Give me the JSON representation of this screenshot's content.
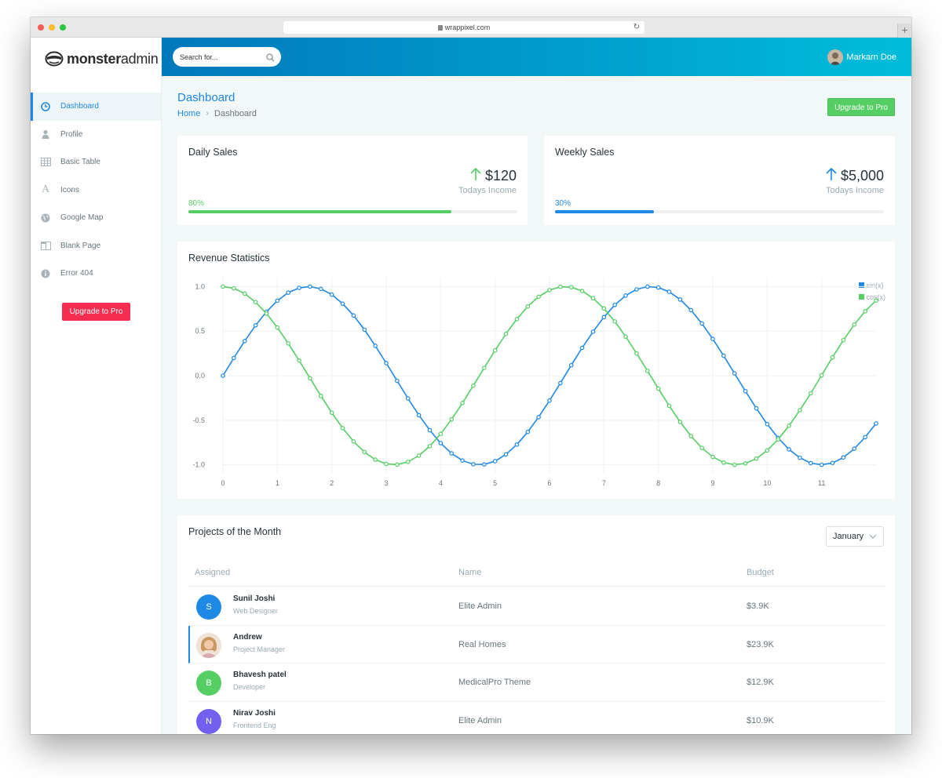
{
  "browser": {
    "url": "wrappixel.com"
  },
  "logo": {
    "bold": "monster",
    "light": "admin"
  },
  "sidebar": {
    "items": [
      {
        "label": "Dashboard",
        "icon": "clock-icon"
      },
      {
        "label": "Profile",
        "icon": "user-icon"
      },
      {
        "label": "Basic Table",
        "icon": "table-icon"
      },
      {
        "label": "Icons",
        "icon": "font-icon"
      },
      {
        "label": "Google Map",
        "icon": "globe-icon"
      },
      {
        "label": "Blank Page",
        "icon": "columns-icon"
      },
      {
        "label": "Error 404",
        "icon": "info-icon"
      }
    ],
    "upgrade_label": "Upgrade to Pro"
  },
  "topbar": {
    "search_placeholder": "Search for...",
    "user_name": "Markarn Doe"
  },
  "page": {
    "title": "Dashboard",
    "breadcrumb": {
      "home": "Home",
      "current": "Dashboard"
    },
    "upgrade_label": "Upgrade to Pro"
  },
  "daily_sales": {
    "title": "Daily Sales",
    "value": "$120",
    "subtitle": "Todays Income",
    "percent_label": "80%",
    "progress": 0.8,
    "color": "#55ce63"
  },
  "weekly_sales": {
    "title": "Weekly Sales",
    "value": "$5,000",
    "subtitle": "Todays Income",
    "percent_label": "30%",
    "progress": 0.3,
    "color": "#1e88e5"
  },
  "revenue": {
    "title": "Revenue Statistics",
    "legend": [
      "sin(x)",
      "cos(x)"
    ]
  },
  "chart_data": {
    "type": "line",
    "x": [
      0,
      0.2,
      0.4,
      0.6,
      0.8,
      1.0,
      1.2,
      1.4,
      1.6,
      1.8,
      2.0,
      2.2,
      2.4,
      2.6,
      2.8,
      3.0,
      3.2,
      3.4,
      3.6,
      3.8,
      4.0,
      4.2,
      4.4,
      4.6,
      4.8,
      5.0,
      5.2,
      5.4,
      5.6,
      5.8,
      6.0,
      6.2,
      6.4,
      6.6,
      6.8,
      7.0,
      7.2,
      7.4,
      7.6,
      7.8,
      8.0,
      8.2,
      8.4,
      8.6,
      8.8,
      9.0,
      9.2,
      9.4,
      9.6,
      9.8,
      10.0,
      10.2,
      10.4,
      10.6,
      10.8,
      11.0,
      11.2,
      11.4,
      11.6,
      11.8,
      12.0
    ],
    "series": [
      {
        "name": "sin(x)",
        "color": "#1e88e5",
        "values": [
          0,
          0.199,
          0.389,
          0.565,
          0.717,
          0.841,
          0.932,
          0.985,
          1.0,
          0.974,
          0.909,
          0.808,
          0.675,
          0.516,
          0.335,
          0.141,
          -0.058,
          -0.256,
          -0.443,
          -0.612,
          -0.757,
          -0.872,
          -0.952,
          -0.994,
          -0.996,
          -0.959,
          -0.883,
          -0.773,
          -0.631,
          -0.465,
          -0.279,
          -0.083,
          0.117,
          0.312,
          0.494,
          0.657,
          0.794,
          0.899,
          0.968,
          0.999,
          0.989,
          0.941,
          0.855,
          0.735,
          0.585,
          0.412,
          0.223,
          0.025,
          -0.174,
          -0.366,
          -0.544,
          -0.699,
          -0.827,
          -0.921,
          -0.981,
          -1.0,
          -0.979,
          -0.918,
          -0.82,
          -0.69,
          -0.537
        ]
      },
      {
        "name": "cos(x)",
        "color": "#55ce63",
        "values": [
          1.0,
          0.98,
          0.921,
          0.825,
          0.697,
          0.54,
          0.362,
          0.17,
          -0.029,
          -0.227,
          -0.416,
          -0.589,
          -0.737,
          -0.857,
          -0.942,
          -0.99,
          -0.998,
          -0.967,
          -0.897,
          -0.791,
          -0.654,
          -0.49,
          -0.307,
          -0.112,
          0.087,
          0.284,
          0.469,
          0.635,
          0.776,
          0.886,
          0.96,
          0.997,
          0.993,
          0.95,
          0.869,
          0.754,
          0.608,
          0.438,
          0.25,
          0.054,
          -0.146,
          -0.339,
          -0.519,
          -0.678,
          -0.811,
          -0.911,
          -0.975,
          -1.0,
          -0.985,
          -0.931,
          -0.839,
          -0.715,
          -0.562,
          -0.388,
          -0.198,
          0.004,
          0.206,
          0.399,
          0.574,
          0.723,
          0.844
        ]
      }
    ],
    "xticks": [
      "0",
      "1",
      "2",
      "3",
      "4",
      "5",
      "6",
      "7",
      "8",
      "9",
      "10",
      "11"
    ],
    "yticks": [
      "1.0",
      "0.5",
      "0.0",
      "-0.5",
      "-1.0"
    ],
    "xlim": [
      0,
      12
    ],
    "ylim": [
      -1.1,
      1.1
    ],
    "grid": true,
    "legend_position": "top-right"
  },
  "projects": {
    "title": "Projects of the Month",
    "month": "January",
    "columns": [
      "Assigned",
      "Name",
      "Budget"
    ],
    "rows": [
      {
        "initial": "S",
        "name": "Sunil Joshi",
        "role": "Web Designer",
        "project": "Elite Admin",
        "budget": "$3.9K",
        "avatar_color": "#1e88e5"
      },
      {
        "initial": "",
        "name": "Andrew",
        "role": "Project Manager",
        "project": "Real Homes",
        "budget": "$23.9K",
        "avatar_color": "#e8cfc0"
      },
      {
        "initial": "B",
        "name": "Bhavesh patel",
        "role": "Developer",
        "project": "MedicalPro Theme",
        "budget": "$12.9K",
        "avatar_color": "#55ce63"
      },
      {
        "initial": "N",
        "name": "Nirav Joshi",
        "role": "Frontend Eng",
        "project": "Elite Admin",
        "budget": "$10.9K",
        "avatar_color": "#7460ee"
      }
    ]
  }
}
